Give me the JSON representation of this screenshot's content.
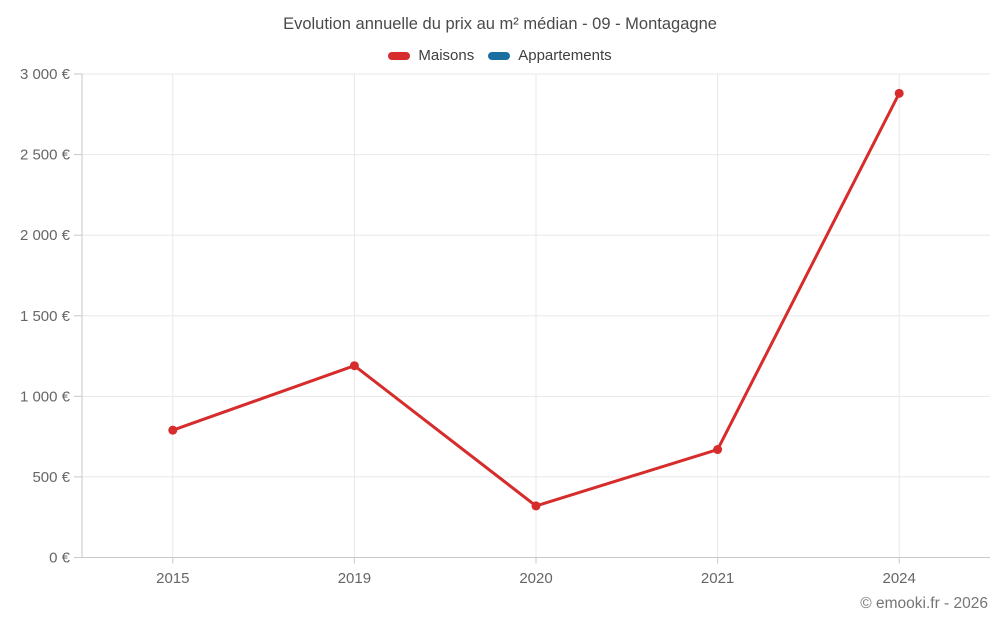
{
  "title": "Evolution annuelle du prix au m² médian - 09 - Montagagne",
  "legend": {
    "items": [
      {
        "label": "Maisons",
        "color": "#d62c2c"
      },
      {
        "label": "Appartements",
        "color": "#1a6fa0"
      }
    ]
  },
  "footer": {
    "copyright": "© emooki.fr - 2026"
  },
  "chart_data": {
    "type": "line",
    "title": "Evolution annuelle du prix au m² médian - 09 - Montagagne",
    "categories": [
      "2015",
      "2019",
      "2020",
      "2021",
      "2024"
    ],
    "series": [
      {
        "name": "Maisons",
        "color": "#d62c2c",
        "values": [
          790,
          1190,
          320,
          670,
          2880
        ]
      },
      {
        "name": "Appartements",
        "color": "#1a6fa0",
        "values": []
      }
    ],
    "xlabel": "",
    "ylabel": "",
    "ylim": [
      0,
      3000
    ],
    "yticks": [
      {
        "value": 0,
        "label": "0 €"
      },
      {
        "value": 500,
        "label": "500 €"
      },
      {
        "value": 1000,
        "label": "1 000 €"
      },
      {
        "value": 1500,
        "label": "1 500 €"
      },
      {
        "value": 2000,
        "label": "2 000 €"
      },
      {
        "value": 2500,
        "label": "2 500 €"
      },
      {
        "value": 3000,
        "label": "3 000 €"
      }
    ],
    "grid": true,
    "legend_position": "top"
  }
}
